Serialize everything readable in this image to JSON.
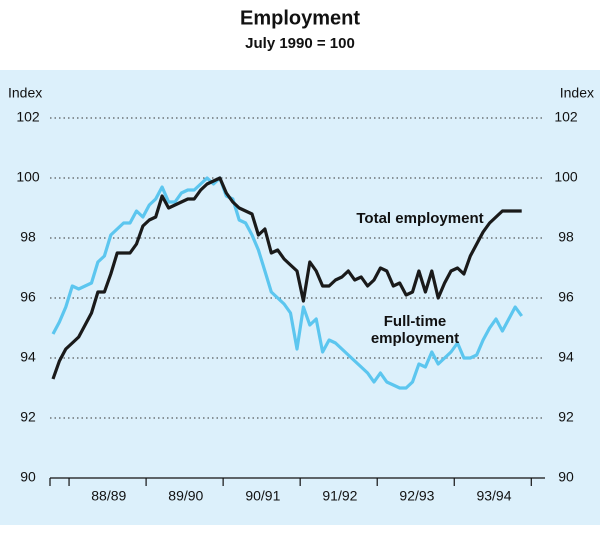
{
  "chart_data": {
    "type": "line",
    "title": "Employment",
    "subtitle": "July 1990 = 100",
    "ylabel": "Index",
    "y2label": "Index",
    "categories": [
      null,
      null,
      null,
      null,
      null,
      null,
      null,
      null,
      null,
      "88/89",
      null,
      null,
      null,
      null,
      null,
      null,
      null,
      null,
      null,
      null,
      null,
      "89/90",
      null,
      null,
      null,
      null,
      null,
      null,
      null,
      null,
      null,
      null,
      null,
      "90/91",
      null,
      null,
      null,
      null,
      null,
      null,
      null,
      null,
      null,
      null,
      null,
      "91/92",
      null,
      null,
      null,
      null,
      null,
      null,
      null,
      null,
      null,
      null,
      null,
      "92/93",
      null,
      null,
      null,
      null,
      null,
      null,
      null,
      null,
      null,
      null,
      null,
      "93/94",
      null,
      null,
      null,
      null
    ],
    "series": [
      {
        "name": "Total employment",
        "color": "#1a1a1a",
        "values": [
          93.3,
          93.9,
          94.3,
          94.5,
          94.7,
          95.1,
          95.5,
          96.2,
          96.2,
          96.8,
          97.5,
          97.5,
          97.5,
          97.8,
          98.4,
          98.6,
          98.7,
          99.4,
          99.0,
          99.1,
          99.2,
          99.3,
          99.3,
          99.6,
          99.8,
          99.9,
          100.0,
          99.5,
          99.2,
          99.0,
          98.9,
          98.8,
          98.1,
          98.3,
          97.5,
          97.6,
          97.3,
          97.1,
          96.9,
          95.9,
          97.2,
          96.9,
          96.4,
          96.4,
          96.6,
          96.7,
          96.9,
          96.6,
          96.7,
          96.4,
          96.6,
          97.0,
          96.9,
          96.4,
          96.5,
          96.1,
          96.2,
          96.9,
          96.2,
          96.9,
          96.0,
          96.5,
          96.9,
          97.0,
          96.8,
          97.4,
          97.8,
          98.2,
          98.5,
          98.7,
          98.9,
          98.9,
          98.9,
          98.9
        ]
      },
      {
        "name": "Full-time employment",
        "color": "#5cc6ef",
        "values": [
          94.8,
          95.2,
          95.7,
          96.4,
          96.3,
          96.4,
          96.5,
          97.2,
          97.4,
          98.1,
          98.3,
          98.5,
          98.5,
          98.9,
          98.7,
          99.1,
          99.3,
          99.7,
          99.2,
          99.2,
          99.5,
          99.6,
          99.6,
          99.8,
          100.0,
          99.8,
          100.0,
          99.4,
          99.3,
          98.6,
          98.5,
          98.1,
          97.6,
          96.9,
          96.2,
          96.0,
          95.8,
          95.5,
          94.3,
          95.7,
          95.1,
          95.3,
          94.2,
          94.6,
          94.5,
          94.3,
          94.1,
          93.9,
          93.7,
          93.5,
          93.2,
          93.5,
          93.2,
          93.1,
          93.0,
          93.0,
          93.2,
          93.8,
          93.7,
          94.2,
          93.8,
          94.0,
          94.2,
          94.5,
          94.0,
          94.0,
          94.1,
          94.6,
          95.0,
          95.3,
          94.9,
          95.3,
          95.7,
          95.4
        ]
      }
    ],
    "annotations": [
      {
        "text": [
          "Total employment"
        ]
      },
      {
        "text": [
          "Full-time",
          "employment"
        ]
      }
    ],
    "ylim": [
      90,
      102
    ],
    "yticks": [
      90,
      92,
      94,
      96,
      98,
      100,
      102
    ],
    "y2lim": [
      90,
      102
    ],
    "y2ticks": [
      90,
      92,
      94,
      96,
      98,
      100,
      102
    ],
    "grid": true
  }
}
